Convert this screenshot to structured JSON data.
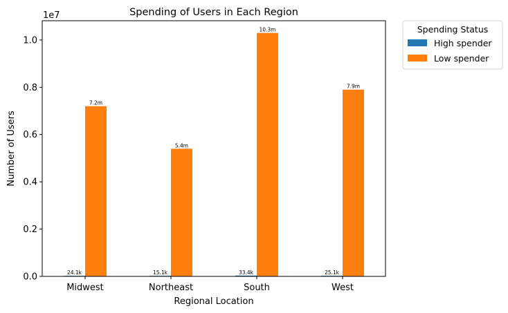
{
  "chart_data": {
    "type": "bar",
    "title": "Spending of Users in Each Region",
    "xlabel": "Regional Location",
    "ylabel": "Number of Users",
    "offset_label": "1e7",
    "categories": [
      "Midwest",
      "Northeast",
      "South",
      "West"
    ],
    "series": [
      {
        "name": "High spender",
        "color": "#1f77b4",
        "values": [
          24100,
          15100,
          33400,
          25100
        ],
        "labels": [
          "24.1k",
          "15.1k",
          "33.4k",
          "25.1k"
        ]
      },
      {
        "name": "Low spender",
        "color": "#ff7f0e",
        "values": [
          7200000,
          5400000,
          10300000,
          7900000
        ],
        "labels": [
          "7.2m",
          "5.4m",
          "10.3m",
          "7.9m"
        ]
      }
    ],
    "ylim": [
      0,
      10815000
    ],
    "yticks": [
      0,
      2000000,
      4000000,
      6000000,
      8000000,
      10000000
    ],
    "ytick_labels": [
      "0.0",
      "0.2",
      "0.4",
      "0.6",
      "0.8",
      "1.0"
    ],
    "grid": false,
    "legend": {
      "title": "Spending Status",
      "placement": "outside-top-right"
    }
  }
}
